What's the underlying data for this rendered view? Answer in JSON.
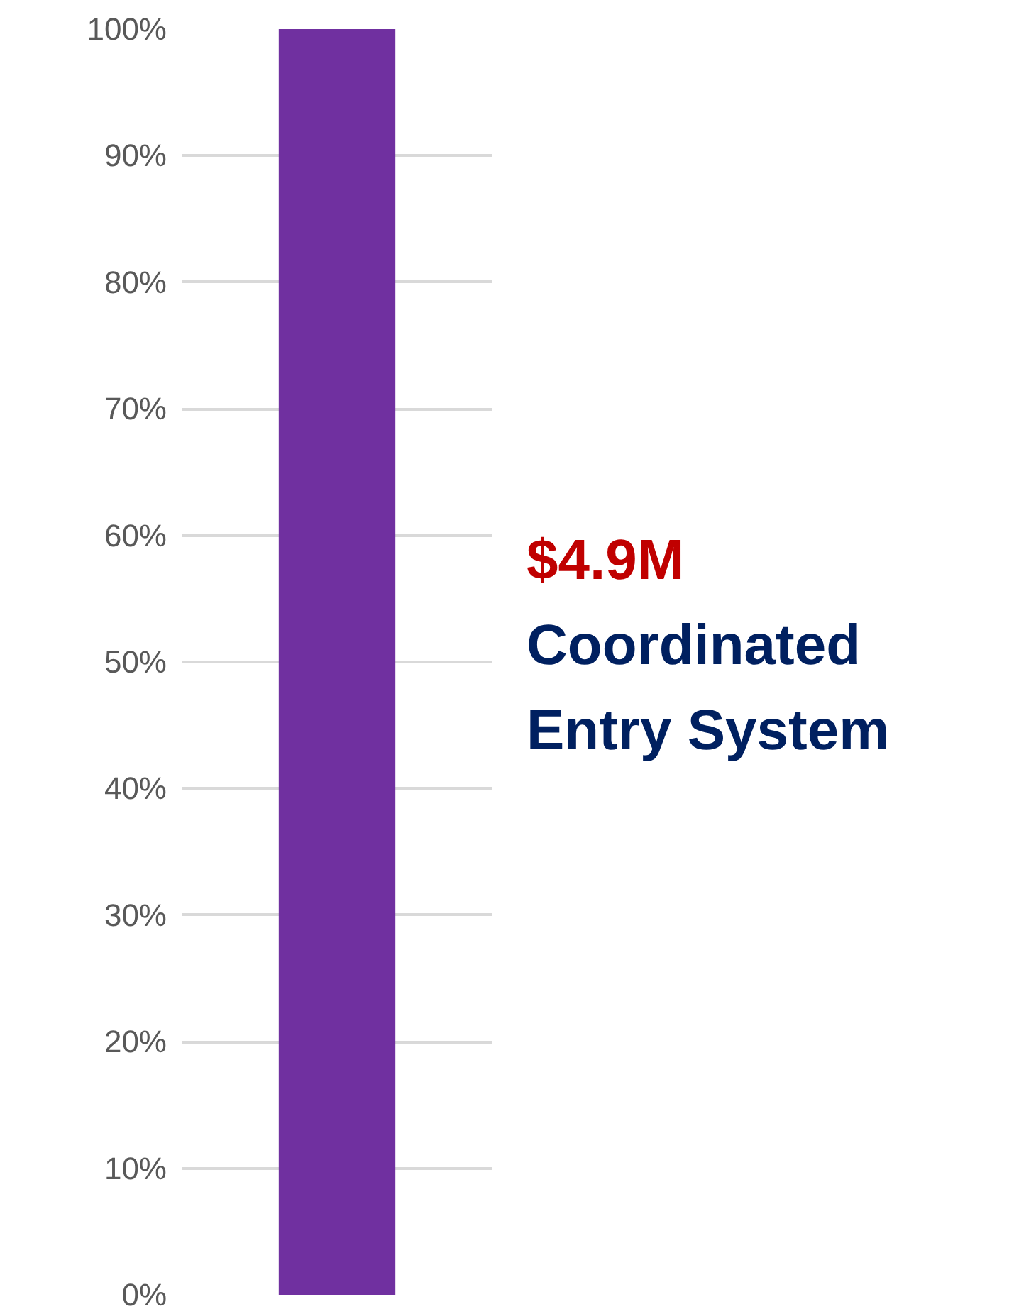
{
  "chart_data": {
    "type": "bar",
    "categories": [
      null
    ],
    "series": [
      {
        "name": "Coordinated Entry System",
        "color": "#7030a0",
        "values": [
          100
        ]
      }
    ],
    "annotations": [
      "$4.9M"
    ],
    "ylim": [
      0,
      100
    ],
    "yticks": [
      {
        "value": 0,
        "label": "0%"
      },
      {
        "value": 10,
        "label": "10%"
      },
      {
        "value": 20,
        "label": "20%"
      },
      {
        "value": 30,
        "label": "30%"
      },
      {
        "value": 40,
        "label": "40%"
      },
      {
        "value": 50,
        "label": "50%"
      },
      {
        "value": 60,
        "label": "60%"
      },
      {
        "value": 70,
        "label": "70%"
      },
      {
        "value": 80,
        "label": "80%"
      },
      {
        "value": 90,
        "label": "90%"
      },
      {
        "value": 100,
        "label": "100%"
      }
    ],
    "grid": "y",
    "tick_labels": "y"
  }
}
